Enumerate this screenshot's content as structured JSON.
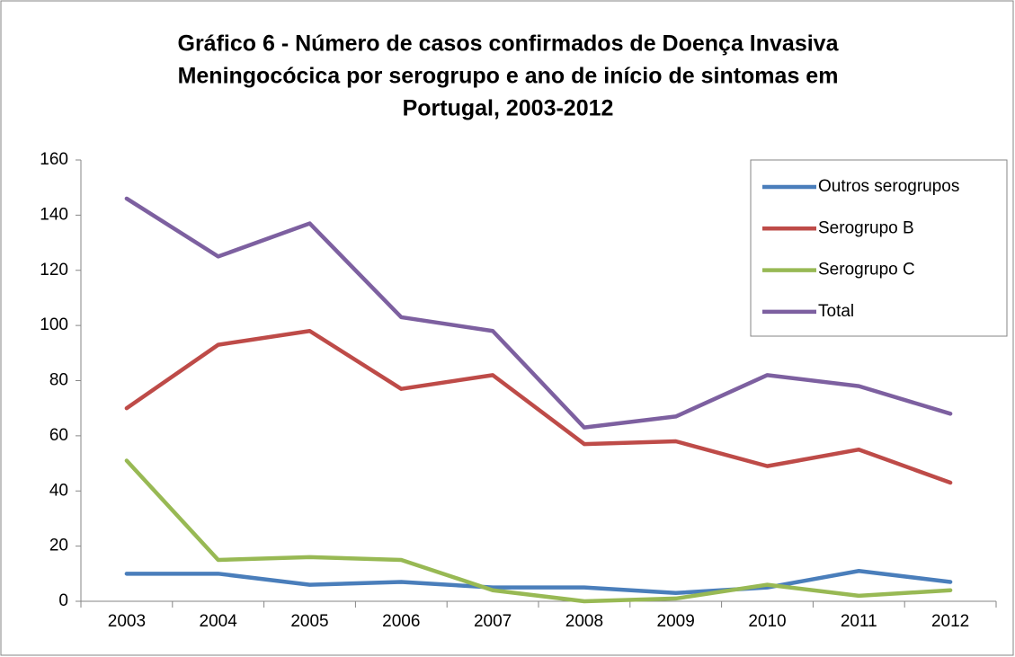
{
  "chart_data": {
    "type": "line",
    "title": [
      "Gráfico 6 - Número de casos confirmados de Doença Invasiva",
      "Meningocócica por serogrupo e ano de início de sintomas em",
      "Portugal, 2003-2012"
    ],
    "categories": [
      "2003",
      "2004",
      "2005",
      "2006",
      "2007",
      "2008",
      "2009",
      "2010",
      "2011",
      "2012"
    ],
    "series": [
      {
        "name": "Outros serogrupos",
        "color": "#4a7ebb",
        "values": [
          10,
          10,
          6,
          7,
          5,
          5,
          3,
          5,
          11,
          7
        ]
      },
      {
        "name": "Serogrupo B",
        "color": "#be4b48",
        "values": [
          70,
          93,
          98,
          77,
          82,
          57,
          58,
          49,
          55,
          43
        ]
      },
      {
        "name": "Serogrupo C",
        "color": "#98b954",
        "values": [
          51,
          15,
          16,
          15,
          4,
          0,
          1,
          6,
          2,
          4
        ]
      },
      {
        "name": "Total",
        "color": "#7d60a0",
        "values": [
          146,
          125,
          137,
          103,
          98,
          63,
          67,
          82,
          78,
          68
        ]
      }
    ],
    "ylim": [
      0,
      160
    ],
    "yticks": [
      0,
      20,
      40,
      60,
      80,
      100,
      120,
      140,
      160
    ],
    "grid": false,
    "legend": "right"
  }
}
